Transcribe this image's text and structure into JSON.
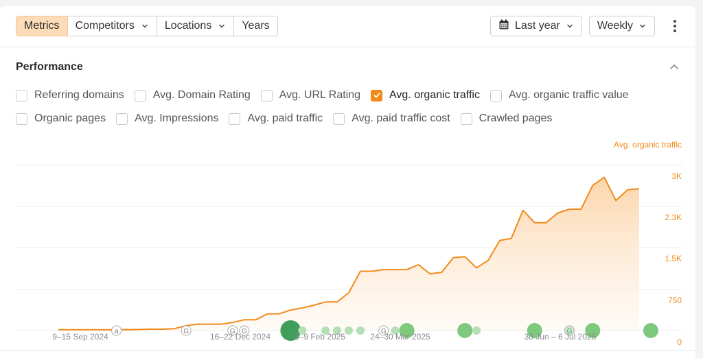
{
  "toolbar": {
    "tabs": [
      {
        "label": "Metrics",
        "active": true,
        "dropdown": false
      },
      {
        "label": "Competitors",
        "active": false,
        "dropdown": true
      },
      {
        "label": "Locations",
        "active": false,
        "dropdown": true
      },
      {
        "label": "Years",
        "active": false,
        "dropdown": false
      }
    ],
    "date_range": "Last year",
    "interval": "Weekly",
    "date_icon": "calendar-icon",
    "more_icon": "kebab-icon"
  },
  "section": {
    "title": "Performance",
    "collapse_icon": "chevron-up-icon"
  },
  "metrics": [
    {
      "label": "Referring domains",
      "checked": false
    },
    {
      "label": "Avg. Domain Rating",
      "checked": false
    },
    {
      "label": "Avg. URL Rating",
      "checked": false
    },
    {
      "label": "Avg. organic traffic",
      "checked": true
    },
    {
      "label": "Avg. organic traffic value",
      "checked": false
    },
    {
      "label": "Organic pages",
      "checked": false
    },
    {
      "label": "Avg. Impressions",
      "checked": false
    },
    {
      "label": "Avg. paid traffic",
      "checked": false
    },
    {
      "label": "Avg. paid traffic cost",
      "checked": false
    },
    {
      "label": "Crawled pages",
      "checked": false
    }
  ],
  "colors": {
    "accent": "#f28a1a",
    "active_tab": "#fcdcb8",
    "marker_green": "#7ec97e",
    "marker_dark_green": "#3f9e5a"
  },
  "chart_data": {
    "type": "area",
    "series": [
      {
        "name": "Avg. organic traffic",
        "values": [
          15,
          15,
          15,
          15,
          15,
          15,
          15,
          20,
          25,
          25,
          35,
          90,
          120,
          120,
          120,
          150,
          200,
          200,
          310,
          310,
          380,
          420,
          470,
          530,
          530,
          700,
          1100,
          1100,
          1130,
          1130,
          1130,
          1220,
          1050,
          1080,
          1350,
          1370,
          1160,
          1300,
          1670,
          1710,
          2230,
          2000,
          2000,
          2180,
          2250,
          2250,
          2690,
          2840,
          2410,
          2610,
          2630
        ]
      }
    ],
    "x_labels": [
      "9–15 Sep 2024",
      "16–22 Dec 2024",
      "3–9 Feb 2025",
      "24–30 Mar 2025",
      "30 Jun – 6 Jul 2025"
    ],
    "y_ticks": [
      "3K",
      "2.3K",
      "1.5K",
      "750",
      "0"
    ],
    "ylim": [
      0,
      3000
    ],
    "grid": true,
    "series_label": "Avg. organic traffic",
    "markers": [
      {
        "week": 5,
        "kind": "annotation",
        "letter": "a"
      },
      {
        "week": 11,
        "kind": "annotation",
        "letter": "G"
      },
      {
        "week": 15,
        "kind": "annotation",
        "letter": "G"
      },
      {
        "week": 16,
        "kind": "annotation",
        "letter": "G"
      },
      {
        "week": 20,
        "kind": "dot-large-dark"
      },
      {
        "week": 21,
        "kind": "dot-small"
      },
      {
        "week": 23,
        "kind": "dot-small"
      },
      {
        "week": 24,
        "kind": "dot-small"
      },
      {
        "week": 25,
        "kind": "dot-small"
      },
      {
        "week": 26,
        "kind": "dot-small"
      },
      {
        "week": 28,
        "kind": "annotation",
        "letter": "G"
      },
      {
        "week": 29,
        "kind": "dot-small"
      },
      {
        "week": 30,
        "kind": "dot-large"
      },
      {
        "week": 35,
        "kind": "dot-large"
      },
      {
        "week": 36,
        "kind": "dot-small"
      },
      {
        "week": 41,
        "kind": "dot-large"
      },
      {
        "week": 44,
        "kind": "annotation-green",
        "letter": "G"
      },
      {
        "week": 46,
        "kind": "dot-large"
      },
      {
        "week": 51,
        "kind": "dot-large"
      }
    ]
  }
}
